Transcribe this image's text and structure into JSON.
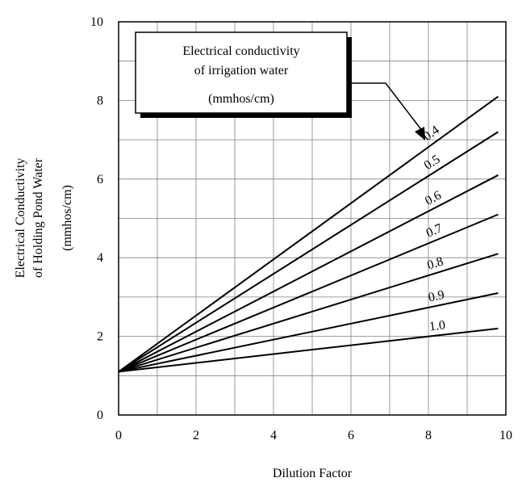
{
  "chart_data": {
    "type": "line",
    "title": "",
    "xlabel": "Dilution Factor",
    "ylabel_lines": [
      "Electrical Conductivity",
      "of Holding Pond Water",
      "(mmhos/cm)"
    ],
    "xlim": [
      0,
      10
    ],
    "ylim": [
      0,
      10
    ],
    "x_ticks": [
      "0",
      "2",
      "4",
      "6",
      "8",
      "10"
    ],
    "y_ticks": [
      "0",
      "2",
      "4",
      "6",
      "8",
      "10"
    ],
    "grid": true,
    "legend_title_lines": [
      "Electrical conductivity",
      "of irrigation water",
      "(mmhos/cm)"
    ],
    "legend_placement": "top-left",
    "series": [
      {
        "name": "0.4",
        "x": [
          0,
          9.8
        ],
        "y": [
          1.1,
          8.1
        ]
      },
      {
        "name": "0.5",
        "x": [
          0,
          9.8
        ],
        "y": [
          1.1,
          7.2
        ]
      },
      {
        "name": "0.6",
        "x": [
          0,
          9.8
        ],
        "y": [
          1.1,
          6.1
        ]
      },
      {
        "name": "0.7",
        "x": [
          0,
          9.8
        ],
        "y": [
          1.1,
          5.1
        ]
      },
      {
        "name": "0.8",
        "x": [
          0,
          9.8
        ],
        "y": [
          1.1,
          4.1
        ]
      },
      {
        "name": "0.9",
        "x": [
          0,
          9.8
        ],
        "y": [
          1.1,
          3.1
        ]
      },
      {
        "name": "1.0",
        "x": [
          0,
          9.8
        ],
        "y": [
          1.1,
          2.2
        ]
      }
    ]
  }
}
